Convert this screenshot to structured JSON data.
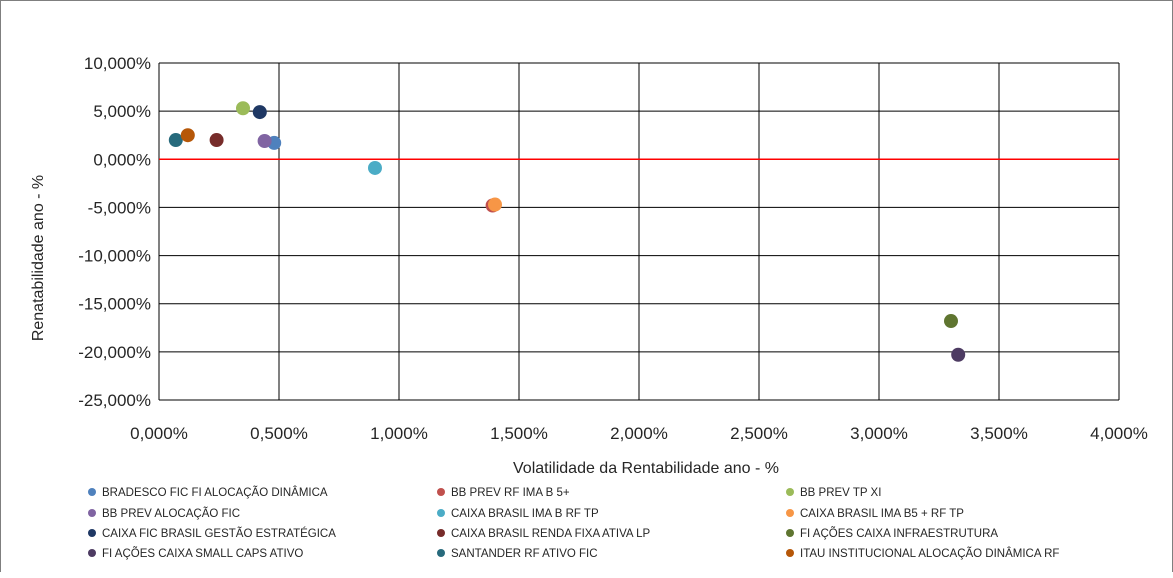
{
  "chart_data": {
    "type": "scatter",
    "title": "",
    "xlabel": "Volatilidade da Rentabilidade ano - %",
    "ylabel": "Renatabilidade ano - %",
    "xlim": [
      0,
      4
    ],
    "ylim": [
      -25,
      10
    ],
    "x_ticks": [
      0,
      0.5,
      1,
      1.5,
      2,
      2.5,
      3,
      3.5,
      4
    ],
    "y_ticks": [
      10,
      5,
      0,
      -5,
      -10,
      -15,
      -20,
      -25
    ],
    "x_tick_labels": [
      "0,000%",
      "0,500%",
      "1,000%",
      "1,500%",
      "2,000%",
      "2,500%",
      "3,000%",
      "3,500%",
      "4,000%"
    ],
    "y_tick_labels": [
      "10,000%",
      "5,000%",
      "0,000%",
      "-5,000%",
      "-10,000%",
      "-15,000%",
      "-20,000%",
      "-25,000%"
    ],
    "grid": true,
    "reference_line": {
      "y": 0,
      "color": "#ff0000"
    },
    "legend_position": "bottom",
    "series": [
      {
        "name": "BRADESCO FIC FI ALOCAÇÃO DINÂMICA",
        "color": "#4f81bd",
        "x": 0.48,
        "y": 1.7
      },
      {
        "name": "BB PREV RF IMA B 5+",
        "color": "#c0504d",
        "x": 1.39,
        "y": -4.8
      },
      {
        "name": "BB PREV TP XI",
        "color": "#9bbb59",
        "x": 0.35,
        "y": 5.3
      },
      {
        "name": "BB PREV ALOCAÇÃO FIC",
        "color": "#8064a2",
        "x": 0.44,
        "y": 1.9
      },
      {
        "name": "CAIXA BRASIL IMA B RF TP",
        "color": "#4bacc6",
        "x": 0.9,
        "y": -0.9
      },
      {
        "name": "CAIXA BRASIL IMA B5 + RF TP",
        "color": "#f79646",
        "x": 1.4,
        "y": -4.7
      },
      {
        "name": "CAIXA FIC BRASIL GESTÃO ESTRATÉGICA",
        "color": "#1f3864",
        "x": 0.42,
        "y": 4.9
      },
      {
        "name": "CAIXA BRASIL RENDA FIXA ATIVA LP",
        "color": "#772c2a",
        "x": 0.24,
        "y": 2.0
      },
      {
        "name": "FI AÇÕES CAIXA INFRAESTRUTURA",
        "color": "#5f7530",
        "x": 3.3,
        "y": -16.8
      },
      {
        "name": "FI AÇÕES CAIXA SMALL CAPS ATIVO",
        "color": "#4d3b62",
        "x": 3.33,
        "y": -20.3
      },
      {
        "name": "SANTANDER RF ATIVO FIC",
        "color": "#276a7c",
        "x": 0.07,
        "y": 2.0
      },
      {
        "name": "ITAU INSTITUCIONAL ALOCAÇÃO DINÂMICA RF",
        "color": "#b65708",
        "x": 0.12,
        "y": 2.5
      }
    ]
  }
}
